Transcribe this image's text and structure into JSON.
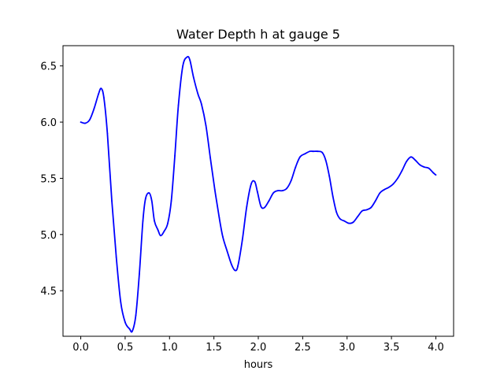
{
  "chart_data": {
    "type": "line",
    "title": "Water Depth h at gauge 5",
    "xlabel": "hours",
    "ylabel": "",
    "xlim": [
      -0.2,
      4.2
    ],
    "ylim": [
      4.095,
      6.68
    ],
    "xticks": [
      0.0,
      0.5,
      1.0,
      1.5,
      2.0,
      2.5,
      3.0,
      3.5,
      4.0
    ],
    "xtick_labels": [
      "0.0",
      "0.5",
      "1.0",
      "1.5",
      "2.0",
      "2.5",
      "3.0",
      "3.5",
      "4.0"
    ],
    "yticks": [
      4.5,
      5.0,
      5.5,
      6.0,
      6.5
    ],
    "ytick_labels": [
      "4.5",
      "5.0",
      "5.5",
      "6.0",
      "6.5"
    ],
    "grid": false,
    "colors": {
      "line": "#0000ff",
      "axes": "#000000",
      "background": "#ffffff"
    },
    "series": [
      {
        "x": [
          0.0,
          0.05,
          0.1,
          0.15,
          0.2,
          0.23,
          0.26,
          0.3,
          0.35,
          0.4,
          0.45,
          0.5,
          0.55,
          0.58,
          0.62,
          0.66,
          0.7,
          0.73,
          0.77,
          0.8,
          0.83,
          0.87,
          0.9,
          0.94,
          0.98,
          1.02,
          1.06,
          1.1,
          1.15,
          1.2,
          1.23,
          1.27,
          1.32,
          1.36,
          1.41,
          1.46,
          1.51,
          1.56,
          1.6,
          1.65,
          1.7,
          1.74,
          1.77,
          1.82,
          1.87,
          1.92,
          1.96,
          1.99,
          2.03,
          2.07,
          2.12,
          2.17,
          2.22,
          2.27,
          2.32,
          2.37,
          2.42,
          2.47,
          2.53,
          2.58,
          2.62,
          2.67,
          2.72,
          2.76,
          2.8,
          2.84,
          2.88,
          2.92,
          2.97,
          3.02,
          3.07,
          3.12,
          3.17,
          3.22,
          3.27,
          3.32,
          3.37,
          3.42,
          3.47,
          3.52,
          3.57,
          3.62,
          3.67,
          3.72,
          3.77,
          3.82,
          3.87,
          3.92,
          3.97,
          4.0
        ],
        "values": [
          6.0,
          5.99,
          6.02,
          6.12,
          6.25,
          6.3,
          6.22,
          5.9,
          5.3,
          4.8,
          4.4,
          4.22,
          4.16,
          4.14,
          4.28,
          4.65,
          5.12,
          5.32,
          5.37,
          5.3,
          5.12,
          5.04,
          4.99,
          5.03,
          5.1,
          5.3,
          5.7,
          6.15,
          6.5,
          6.58,
          6.55,
          6.4,
          6.25,
          6.16,
          5.97,
          5.68,
          5.4,
          5.15,
          4.98,
          4.85,
          4.73,
          4.68,
          4.72,
          4.95,
          5.25,
          5.45,
          5.47,
          5.38,
          5.25,
          5.24,
          5.3,
          5.37,
          5.39,
          5.39,
          5.41,
          5.48,
          5.6,
          5.69,
          5.72,
          5.74,
          5.74,
          5.74,
          5.73,
          5.66,
          5.52,
          5.34,
          5.2,
          5.14,
          5.12,
          5.1,
          5.11,
          5.16,
          5.21,
          5.22,
          5.24,
          5.3,
          5.37,
          5.4,
          5.42,
          5.45,
          5.5,
          5.57,
          5.65,
          5.69,
          5.66,
          5.62,
          5.6,
          5.59,
          5.55,
          5.53
        ]
      }
    ]
  }
}
